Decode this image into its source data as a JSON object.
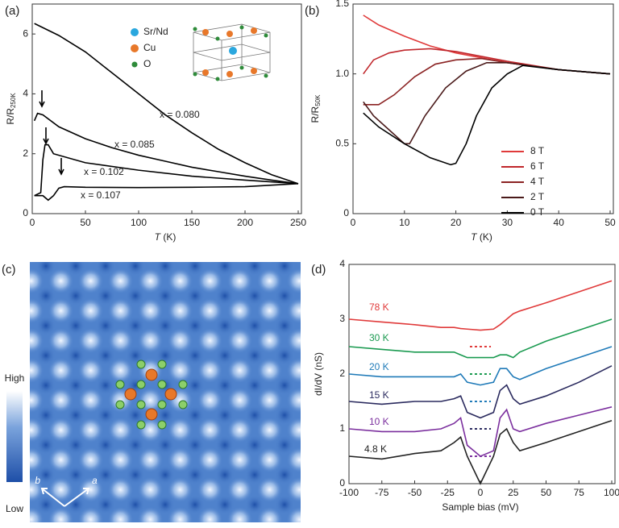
{
  "chart_data": [
    {
      "type": "line",
      "panel_label": "(a)",
      "ylabel": "R/R",
      "ylabel_sub": "250K",
      "xlabel_var": "T",
      "xlabel_unit": " (K)",
      "xlim": [
        0,
        250
      ],
      "xticks": [
        0,
        50,
        100,
        150,
        200,
        250
      ],
      "ylim": [
        0,
        7
      ],
      "yticks": [
        0,
        2,
        4,
        6
      ],
      "atom_legend": [
        {
          "label": "Sr/Nd",
          "color": "#2aa7de"
        },
        {
          "label": "Cu",
          "color": "#e8782a"
        },
        {
          "label": "O",
          "color": "#2e8b3a"
        }
      ],
      "series": [
        {
          "name": "x = 0.080",
          "color": "#000000",
          "x": [
            2,
            25,
            50,
            75,
            100,
            125,
            150,
            175,
            200,
            225,
            250
          ],
          "values": [
            6.35,
            5.95,
            5.4,
            4.7,
            4.0,
            3.3,
            2.7,
            2.15,
            1.7,
            1.3,
            1.0
          ]
        },
        {
          "name": "x = 0.085",
          "color": "#000000",
          "x": [
            2,
            5,
            10,
            25,
            50,
            75,
            100,
            125,
            150,
            175,
            200,
            225,
            250
          ],
          "values": [
            3.1,
            3.35,
            3.3,
            2.9,
            2.5,
            2.2,
            1.95,
            1.75,
            1.55,
            1.4,
            1.25,
            1.12,
            1.0
          ]
        },
        {
          "name": "x = 0.102",
          "color": "#000000",
          "x": [
            2,
            8,
            10,
            12,
            15,
            20,
            50,
            100,
            150,
            200,
            250
          ],
          "values": [
            0.6,
            0.7,
            1.8,
            2.3,
            2.3,
            2.0,
            1.7,
            1.45,
            1.25,
            1.12,
            1.0
          ]
        },
        {
          "name": "x = 0.107",
          "color": "#000000",
          "x": [
            2,
            10,
            15,
            20,
            25,
            30,
            50,
            100,
            150,
            200,
            250
          ],
          "values": [
            0.6,
            0.6,
            0.45,
            0.6,
            0.85,
            0.9,
            0.88,
            0.87,
            0.88,
            0.9,
            1.0
          ]
        }
      ]
    },
    {
      "type": "line",
      "panel_label": "(b)",
      "ylabel": "R/R",
      "ylabel_sub": "50K",
      "xlabel_var": "T",
      "xlabel_unit": " (K)",
      "xlim": [
        0,
        50
      ],
      "xticks": [
        0,
        10,
        20,
        30,
        40,
        50
      ],
      "ylim": [
        0,
        1.5
      ],
      "yticks": [
        0,
        0.5,
        {
          "value": 1,
          "label": "1.0"
        },
        1.5
      ],
      "legend": "lower right",
      "series": [
        {
          "name": "8 T",
          "color": "#e03a3a",
          "x": [
            2,
            5,
            10,
            15,
            20,
            30,
            40,
            50
          ],
          "values": [
            1.42,
            1.35,
            1.27,
            1.2,
            1.15,
            1.08,
            1.03,
            1.0
          ]
        },
        {
          "name": "6 T",
          "color": "#c0262b",
          "x": [
            2,
            4,
            7,
            10,
            15,
            20,
            30,
            40,
            50
          ],
          "values": [
            1.0,
            1.1,
            1.15,
            1.17,
            1.18,
            1.16,
            1.09,
            1.03,
            1.0
          ]
        },
        {
          "name": "4 T",
          "color": "#8b2323",
          "x": [
            2,
            5,
            8,
            12,
            16,
            20,
            25,
            30,
            40,
            50
          ],
          "values": [
            0.78,
            0.78,
            0.85,
            0.98,
            1.07,
            1.1,
            1.11,
            1.08,
            1.03,
            1.0
          ]
        },
        {
          "name": "2 T",
          "color": "#4a1a1a",
          "x": [
            2,
            4,
            7,
            10,
            11,
            14,
            18,
            22,
            26,
            30,
            40,
            50
          ],
          "values": [
            0.8,
            0.7,
            0.6,
            0.5,
            0.5,
            0.7,
            0.9,
            1.02,
            1.08,
            1.08,
            1.03,
            1.0
          ]
        },
        {
          "name": "0 T",
          "color": "#000000",
          "x": [
            2,
            5,
            10,
            15,
            19,
            20,
            22,
            24,
            27,
            30,
            33,
            40,
            50
          ],
          "values": [
            0.72,
            0.62,
            0.5,
            0.4,
            0.35,
            0.36,
            0.5,
            0.7,
            0.9,
            1.0,
            1.06,
            1.03,
            1.0
          ]
        }
      ]
    },
    {
      "type": "line",
      "panel_label": "(d)",
      "ylabel": "dI/dV (nS)",
      "xlabel": "Sample bias (mV)",
      "xlim": [
        -100,
        100
      ],
      "xticks": [
        -100,
        -75,
        -50,
        -25,
        0,
        25,
        50,
        75,
        100
      ],
      "ylim": [
        0,
        4
      ],
      "yticks": [
        0,
        1,
        2,
        3,
        4
      ],
      "x": [
        -100,
        -75,
        -50,
        -30,
        -20,
        -15,
        -10,
        0,
        10,
        15,
        20,
        25,
        30,
        50,
        75,
        100
      ],
      "series": [
        {
          "name": "78 K",
          "color": "#e03a3a",
          "zero_level": 2.5,
          "values": [
            3.0,
            2.95,
            2.9,
            2.85,
            2.85,
            2.83,
            2.82,
            2.8,
            2.82,
            2.9,
            3.0,
            3.1,
            3.15,
            3.3,
            3.5,
            3.7
          ]
        },
        {
          "name": "30 K",
          "color": "#1a9a50",
          "zero_level": 2.0,
          "values": [
            2.5,
            2.45,
            2.4,
            2.4,
            2.4,
            2.35,
            2.3,
            2.3,
            2.3,
            2.35,
            2.35,
            2.3,
            2.4,
            2.6,
            2.8,
            3.0
          ]
        },
        {
          "name": "20 K",
          "color": "#1f7ab8",
          "zero_level": 1.5,
          "values": [
            2.0,
            1.95,
            1.95,
            1.95,
            1.95,
            2.0,
            1.85,
            1.8,
            1.85,
            2.1,
            2.1,
            1.95,
            1.9,
            2.1,
            2.3,
            2.5
          ]
        },
        {
          "name": "15 K",
          "color": "#2a2a5e",
          "zero_level": 1.0,
          "values": [
            1.5,
            1.45,
            1.5,
            1.5,
            1.55,
            1.6,
            1.3,
            1.2,
            1.3,
            1.7,
            1.8,
            1.55,
            1.45,
            1.6,
            1.85,
            2.15
          ]
        },
        {
          "name": "10 K",
          "color": "#7b2f9e",
          "zero_level": 0.5,
          "values": [
            1.0,
            0.95,
            0.95,
            1.0,
            1.1,
            1.2,
            0.7,
            0.5,
            0.6,
            1.2,
            1.35,
            1.0,
            0.95,
            1.1,
            1.25,
            1.4
          ]
        },
        {
          "name": "4.8 K",
          "color": "#222222",
          "values": [
            0.5,
            0.45,
            0.55,
            0.6,
            0.75,
            0.85,
            0.5,
            0.0,
            0.5,
            0.9,
            1.0,
            0.75,
            0.6,
            0.75,
            0.95,
            1.15
          ]
        }
      ]
    }
  ],
  "image_panel": {
    "panel_label": "(c)",
    "colorbar_high": "High",
    "colorbar_low": "Low",
    "axis_a": "a",
    "axis_b": "b"
  }
}
